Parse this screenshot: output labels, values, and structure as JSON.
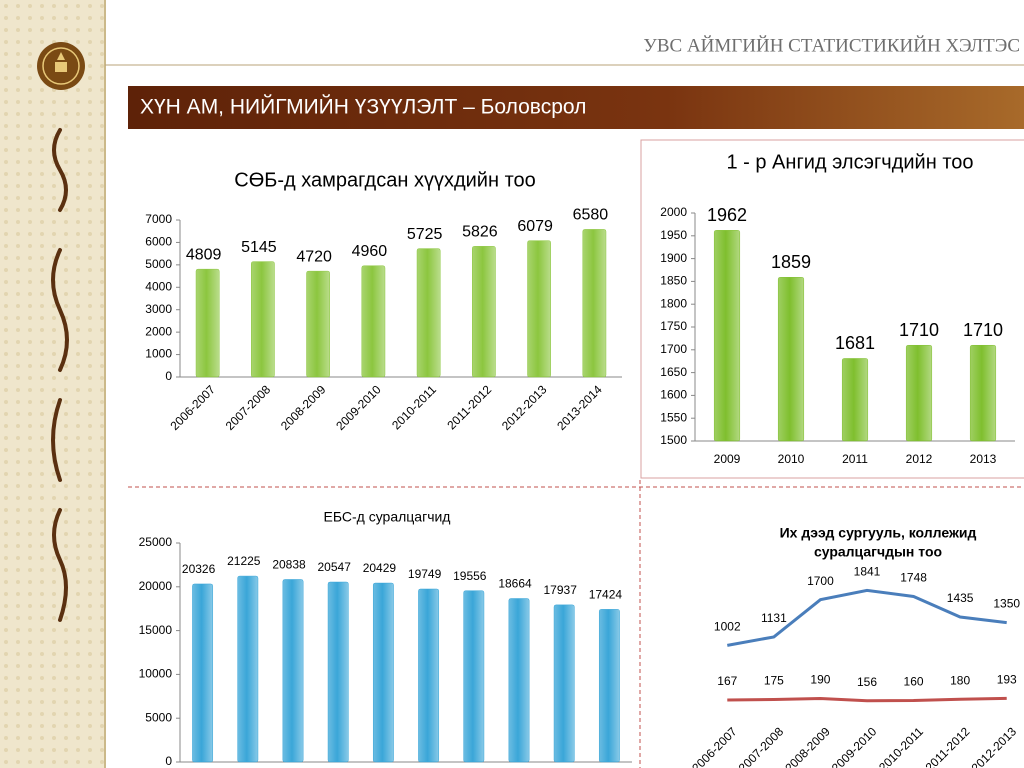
{
  "header": {
    "subtitle": "УВС АЙМГИЙН СТАТИСТИКИЙН ХЭЛТЭС",
    "title": "ХҮН АМ, НИЙГМИЙН ҮЗҮҮЛЭЛТ – Боловсрол"
  },
  "chart_data": [
    {
      "type": "bar",
      "title": "СӨБ-д хамрагдсан хүүхдийн тоо",
      "categories": [
        "2006-2007",
        "2007-2008",
        "2008-2009",
        "2009-2010",
        "2010-2011",
        "2011-2012",
        "2012-2013",
        "2013-2014"
      ],
      "values": [
        4809,
        5145,
        4720,
        4960,
        5725,
        5826,
        6079,
        6580
      ],
      "color": "#8cc63f",
      "ylim": [
        0,
        7000
      ],
      "yticks": [
        0,
        1000,
        2000,
        3000,
        4000,
        5000,
        6000,
        7000
      ]
    },
    {
      "type": "bar",
      "title": "1 - р Ангид элсэгчдийн тоо",
      "categories": [
        "2009",
        "2010",
        "2011",
        "2012",
        "2013"
      ],
      "values": [
        1962,
        1859,
        1681,
        1710,
        1710
      ],
      "color": "#7fbf2e",
      "ylim": [
        1500,
        2000
      ],
      "yticks": [
        1500,
        1550,
        1600,
        1650,
        1700,
        1750,
        1800,
        1850,
        1900,
        1950,
        2000
      ]
    },
    {
      "type": "bar",
      "title": "ЕБС-д суралцагчид",
      "categories": [
        null,
        null,
        null,
        null,
        null,
        null,
        null,
        null,
        null,
        null
      ],
      "values": [
        20326,
        21225,
        20838,
        20547,
        20429,
        19749,
        19556,
        18664,
        17937,
        17424
      ],
      "color": "#3aa6d8",
      "ylim": [
        0,
        25000
      ],
      "yticks": [
        0,
        5000,
        10000,
        15000,
        20000,
        25000
      ]
    },
    {
      "type": "line",
      "title": [
        "Их дээд сургууль, коллежид",
        "суралцагчдын тоо"
      ],
      "categories": [
        "2006-2007",
        "2007-2008",
        "2008-2009",
        "2009-2010",
        "2010-2011",
        "2011-2012",
        "2012-2013"
      ],
      "series": [
        {
          "color": "#4a7ebb",
          "values": [
            1002,
            1131,
            1700,
            1841,
            1748,
            1435,
            1350
          ]
        },
        {
          "color": "#c0504d",
          "values": [
            167,
            175,
            190,
            156,
            160,
            180,
            193
          ]
        }
      ]
    }
  ]
}
